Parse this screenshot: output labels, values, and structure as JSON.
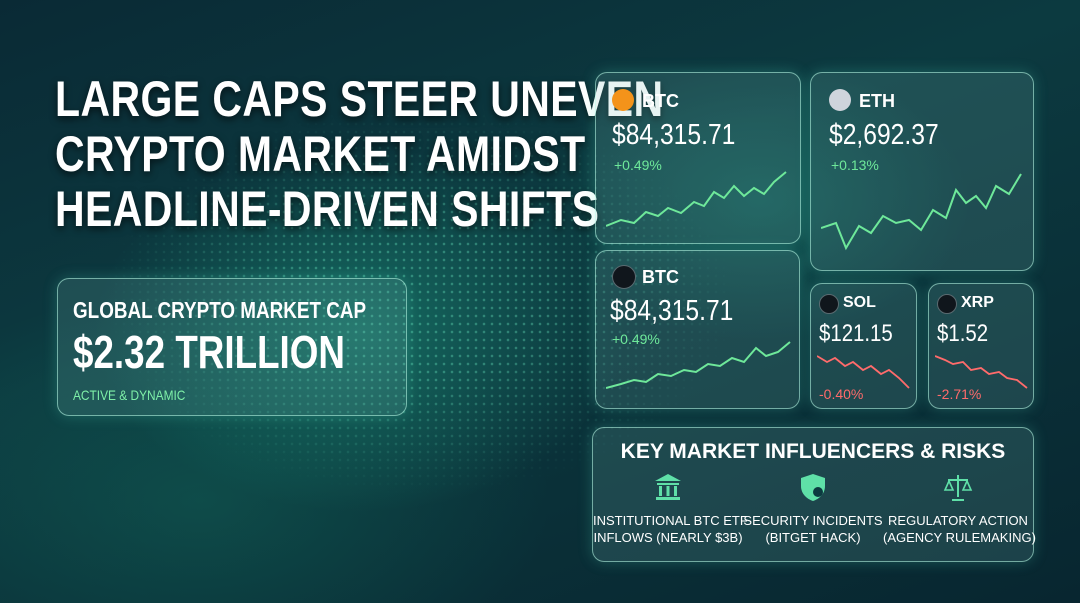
{
  "headline": [
    "LARGE CAPS STEER UNEVEN",
    "CRYPTO MARKET AMIDST",
    "HEADLINE-DRIVEN SHIFTS"
  ],
  "market_cap": {
    "label": "GLOBAL CRYPTO MARKET CAP",
    "value": "$2.32 TRILLION",
    "note": "ACTIVE & DYNAMIC"
  },
  "tickers": [
    {
      "symbol": "BTC",
      "price": "$84,315.71",
      "change": "+0.49%"
    },
    {
      "symbol": "ETH",
      "price": "$2,692.37",
      "change": "+0.13%"
    },
    {
      "symbol": "BTC",
      "price": "$84,315.71",
      "change": "+0.49%"
    },
    {
      "symbol": "SOL",
      "price": "$121.15",
      "change": "-0.40%"
    },
    {
      "symbol": "XRP",
      "price": "$1.52",
      "change": "-2.71%"
    }
  ],
  "influencers": {
    "title": "KEY MARKET INFLUENCERS & RISKS",
    "items": [
      [
        "INSTITUTIONAL BTC ETF",
        "INFLOWS (NEARLY $3B)"
      ],
      [
        "SECURITY INCIDENTS",
        "(BITGET HACK)"
      ],
      [
        "REGULATORY ACTION",
        "(AGENCY RULEMAKING)"
      ]
    ]
  }
}
